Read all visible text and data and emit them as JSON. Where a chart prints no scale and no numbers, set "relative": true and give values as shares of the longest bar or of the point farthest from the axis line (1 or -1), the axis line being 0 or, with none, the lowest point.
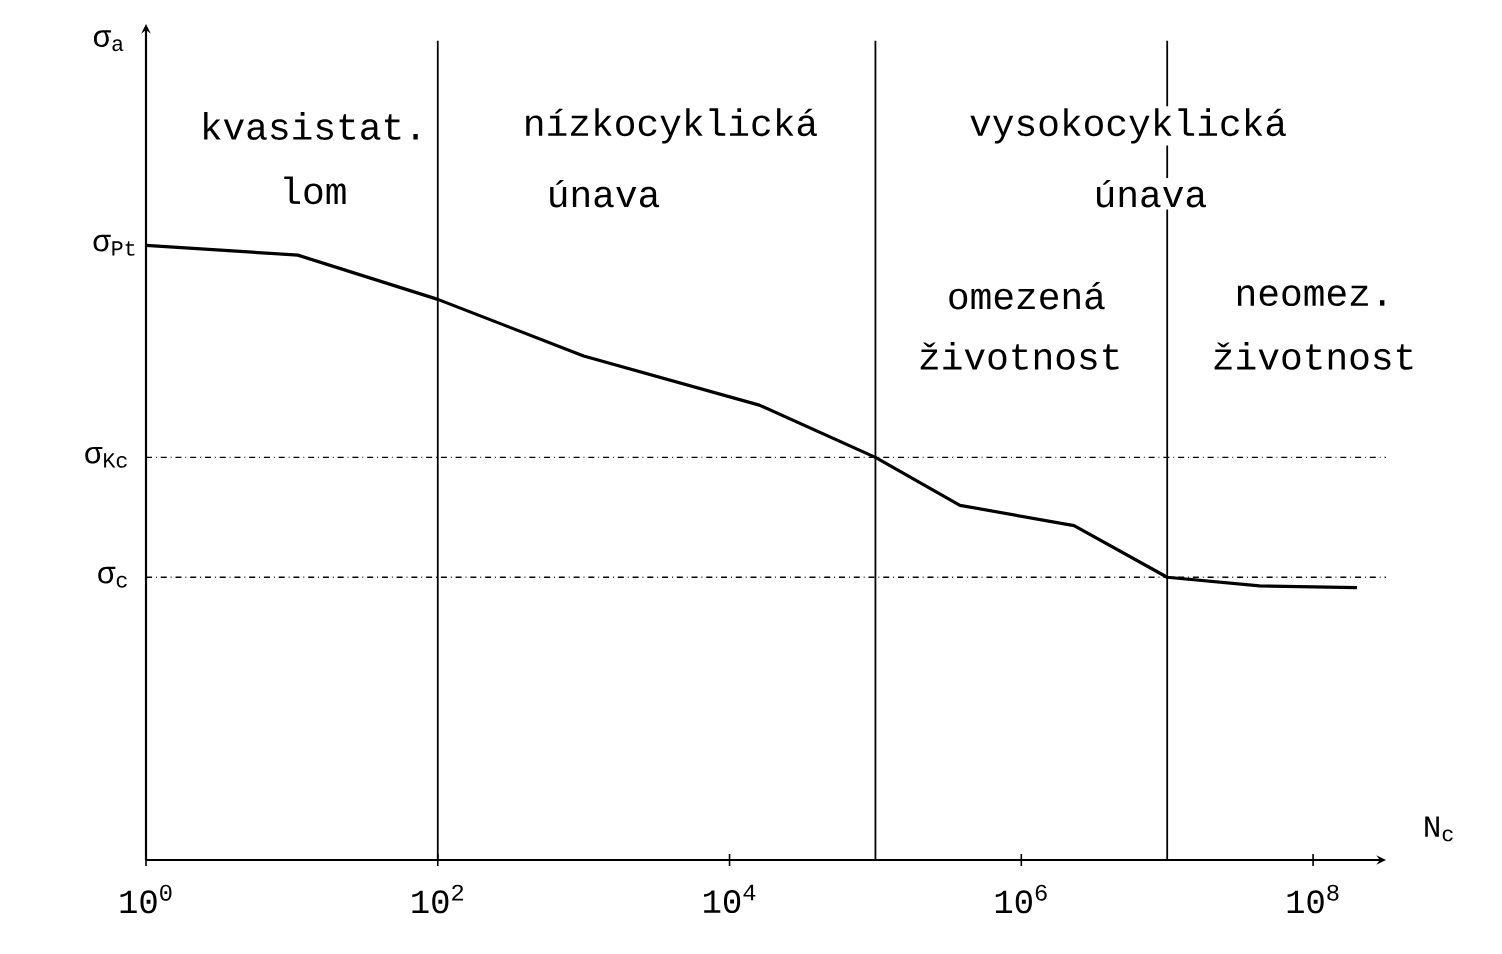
{
  "chart_data": {
    "type": "line",
    "relative": true,
    "log": "x",
    "xlabel": "N$_{c}$",
    "xlim": [
      1,
      316227766
    ],
    "xticks": [
      {
        "value": 1,
        "label": "10$^{0}$"
      },
      {
        "value": 100,
        "label": "10$^{2}$"
      },
      {
        "value": 10000,
        "label": "10$^{4}$"
      },
      {
        "value": 1000000,
        "label": "10$^{6}$"
      },
      {
        "value": 100000000,
        "label": "10$^{8}$"
      }
    ],
    "grid": false,
    "marker": "none",
    "line_style": "solid",
    "x": [
      1,
      11,
      100,
      1000,
      16000,
      100000,
      380000,
      2300000,
      10000000,
      43000000,
      200000000
    ],
    "series": [
      {
        "color": "#000000",
        "values": [
          1,
          0.984,
          0.912,
          0.82,
          0.74,
          0.655,
          0.577,
          0.544,
          0.46,
          0.446,
          0.443
        ]
      }
    ],
    "ref_lines": [
      {
        "axis": "y",
        "value": 0.655,
        "label": "σ$_{Kc}$",
        "line_style": "dashed"
      },
      {
        "axis": "y",
        "value": 0.46,
        "label": "σ$_{c}$",
        "line_style": "dashed"
      },
      {
        "axis": "x",
        "value": 100,
        "line_style": "solid"
      },
      {
        "axis": "x",
        "value": 100000,
        "line_style": "solid"
      },
      {
        "axis": "x",
        "value": 10000000,
        "line_style": "solid"
      }
    ],
    "annotations": [
      {
        "text": "σ$_{Pt}$",
        "x": 1,
        "y": 1
      },
      "kvasistat.",
      "lom",
      "nízkocyklická",
      "únava",
      "vysokocyklická",
      "únava",
      "omezená",
      "životnost",
      "neomez.",
      "životnost",
      "σ$_{a}$"
    ]
  }
}
